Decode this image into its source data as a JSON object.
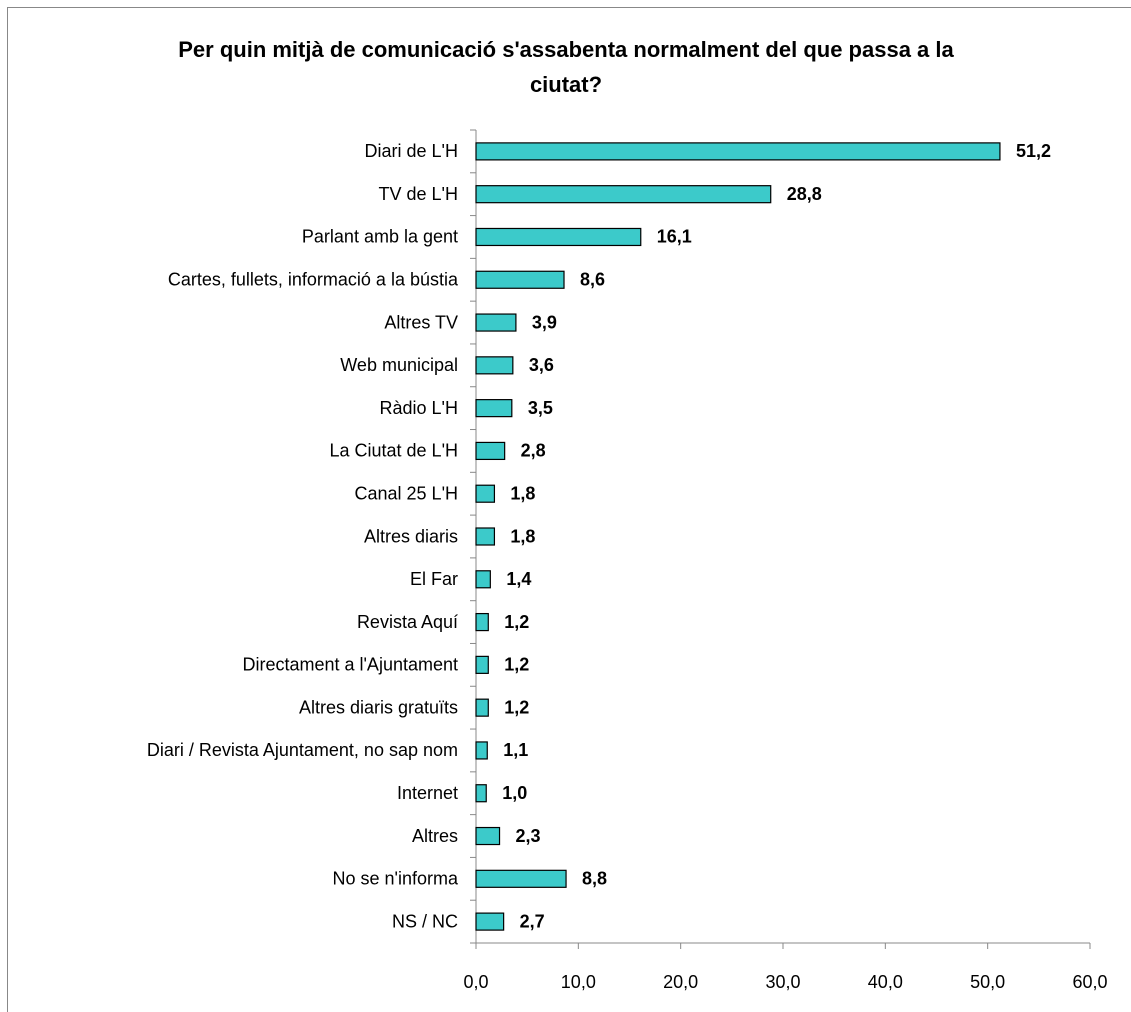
{
  "chart_data": {
    "type": "bar",
    "orientation": "horizontal",
    "title": "Per quin mitjà de comunicació s'assabenta normalment del que passa a la ciutat?",
    "categories": [
      "Diari de L'H",
      "TV de L'H",
      "Parlant amb la gent",
      "Cartes, fullets, informació a la bústia",
      "Altres TV",
      "Web municipal",
      "Ràdio L'H",
      "La Ciutat de L'H",
      "Canal 25 L'H",
      "Altres diaris",
      "El Far",
      "Revista Aquí",
      "Directament a l'Ajuntament",
      "Altres diaris gratuïts",
      "Diari / Revista Ajuntament, no sap nom",
      "Internet",
      "Altres",
      "No se n'informa",
      "NS / NC"
    ],
    "values": [
      51.2,
      28.8,
      16.1,
      8.6,
      3.9,
      3.6,
      3.5,
      2.8,
      1.8,
      1.8,
      1.4,
      1.2,
      1.2,
      1.2,
      1.1,
      1.0,
      2.3,
      8.8,
      2.7
    ],
    "value_labels": [
      "51,2",
      "28,8",
      "16,1",
      "8,6",
      "3,9",
      "3,6",
      "3,5",
      "2,8",
      "1,8",
      "1,8",
      "1,4",
      "1,2",
      "1,2",
      "1,2",
      "1,1",
      "1,0",
      "2,3",
      "8,8",
      "2,7"
    ],
    "color": "#3ccaca",
    "xlim": [
      0,
      60
    ],
    "xticks": [
      {
        "value": 0,
        "label": "0,0"
      },
      {
        "value": 10,
        "label": "10,0"
      },
      {
        "value": 20,
        "label": "20,0"
      },
      {
        "value": 30,
        "label": "30,0"
      },
      {
        "value": 40,
        "label": "40,0"
      },
      {
        "value": 50,
        "label": "50,0"
      },
      {
        "value": 60,
        "label": "60,0"
      }
    ],
    "grid": false
  }
}
